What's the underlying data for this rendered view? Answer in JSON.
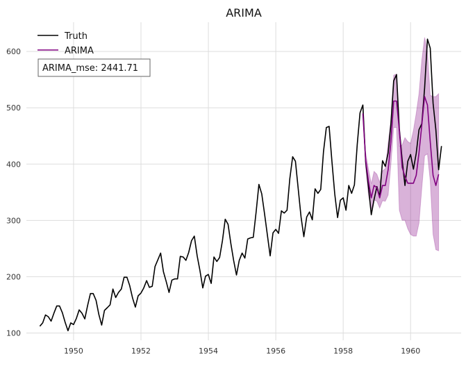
{
  "chart_data": {
    "type": "line",
    "title": "ARIMA",
    "xlabel": "",
    "ylabel": "",
    "xlim": [
      1948.6,
      1961.5
    ],
    "ylim": [
      87,
      652
    ],
    "grid": true,
    "legend_position": "top-left",
    "x_ticks": [
      1950,
      1952,
      1954,
      1956,
      1958,
      1960
    ],
    "y_ticks": [
      100,
      200,
      300,
      400,
      500,
      600
    ],
    "x_tick_labels": [
      "1950",
      "1952",
      "1954",
      "1956",
      "1958",
      "1960"
    ],
    "y_tick_labels": [
      "100",
      "200",
      "300",
      "400",
      "500",
      "600"
    ],
    "annotation": "ARIMA_mse: 2441.71",
    "series": [
      {
        "name": "Truth",
        "color": "#000000",
        "x_start": 1949.0,
        "x_step_months": 1,
        "values": [
          112,
          118,
          132,
          129,
          121,
          135,
          148,
          148,
          136,
          119,
          104,
          118,
          115,
          126,
          141,
          135,
          125,
          149,
          170,
          170,
          158,
          133,
          114,
          140,
          145,
          150,
          178,
          163,
          172,
          178,
          199,
          199,
          184,
          162,
          146,
          166,
          171,
          180,
          193,
          181,
          183,
          218,
          230,
          242,
          209,
          191,
          172,
          194,
          196,
          196,
          236,
          235,
          229,
          243,
          264,
          272,
          237,
          211,
          180,
          201,
          204,
          188,
          235,
          227,
          234,
          264,
          302,
          293,
          259,
          229,
          203,
          229,
          242,
          233,
          267,
          269,
          270,
          315,
          364,
          347,
          312,
          274,
          237,
          278,
          284,
          277,
          317,
          313,
          318,
          374,
          413,
          405,
          355,
          306,
          271,
          306,
          315,
          301,
          356,
          348,
          355,
          422,
          465,
          467,
          404,
          347,
          305,
          336,
          340,
          318,
          362,
          348,
          363,
          435,
          491,
          505,
          404,
          359,
          310,
          337,
          360,
          342,
          406,
          396,
          420,
          472,
          548,
          559,
          463,
          407,
          362,
          405,
          417,
          391,
          419,
          461,
          472,
          535,
          622,
          606,
          508,
          461,
          390,
          432
        ]
      },
      {
        "name": "ARIMA",
        "color": "#800080",
        "x_start": 1958.5833,
        "x_step_months": 1,
        "values": [
          490,
          408,
          370,
          340,
          362,
          358,
          340,
          362,
          362,
          390,
          440,
          512,
          512,
          460,
          394,
          378,
          366,
          366,
          366,
          380,
          420,
          470,
          520,
          505,
          440,
          380,
          362,
          382
        ],
        "lower": [
          490,
          395,
          345,
          320,
          336,
          334,
          322,
          335,
          334,
          345,
          400,
          465,
          465,
          318,
          300,
          300,
          285,
          275,
          272,
          272,
          295,
          358,
          415,
          418,
          370,
          275,
          248,
          246
        ],
        "upper": [
          490,
          420,
          392,
          365,
          387,
          382,
          368,
          388,
          392,
          438,
          478,
          558,
          560,
          432,
          434,
          447,
          440,
          437,
          460,
          490,
          525,
          585,
          625,
          600,
          522,
          520,
          520,
          525
        ]
      }
    ]
  }
}
